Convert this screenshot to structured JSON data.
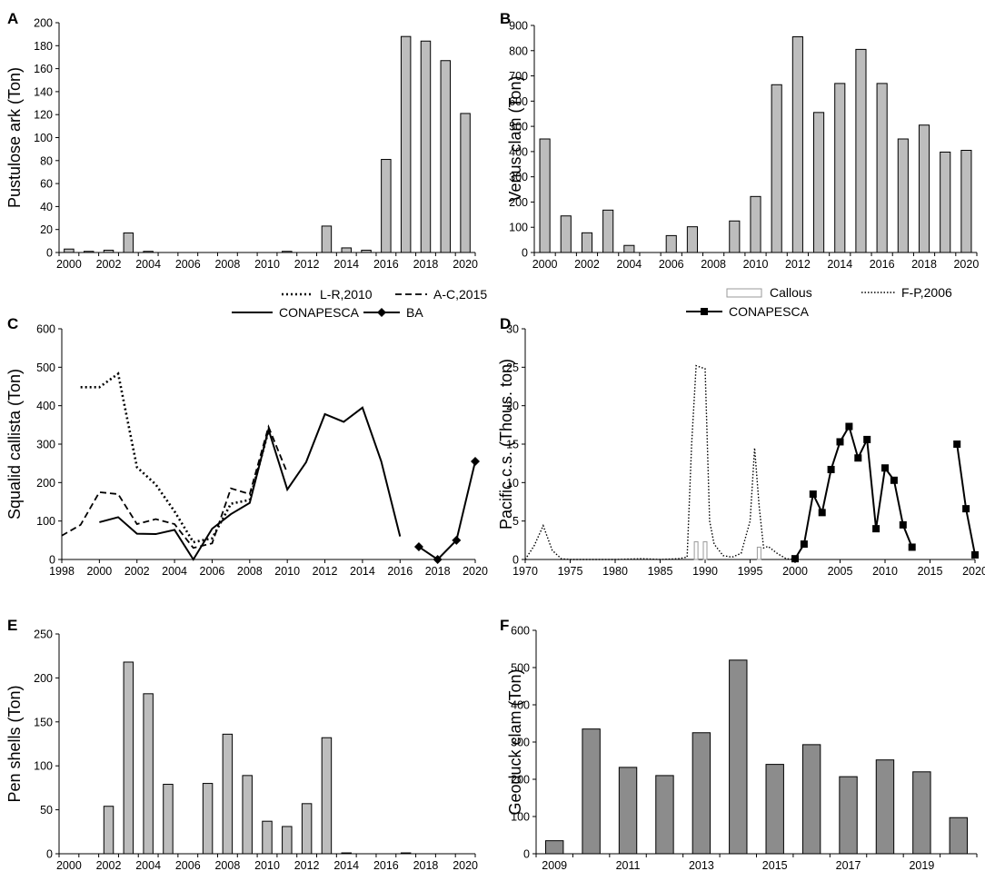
{
  "chart_data": [
    {
      "panel": "A",
      "type": "bar",
      "ylabel": "Pustulose ark (Ton)",
      "ylim": [
        0,
        200
      ],
      "yticks": [
        0,
        20,
        40,
        60,
        80,
        100,
        120,
        140,
        160,
        180,
        200
      ],
      "x": [
        2000,
        2001,
        2002,
        2003,
        2004,
        2005,
        2006,
        2007,
        2008,
        2009,
        2010,
        2011,
        2012,
        2013,
        2014,
        2015,
        2016,
        2017,
        2018,
        2019,
        2020
      ],
      "values": [
        3,
        1,
        2,
        17,
        1,
        0,
        0,
        0,
        0,
        0,
        0,
        1,
        0,
        23,
        4,
        2,
        81,
        188,
        184,
        167,
        121
      ],
      "xtick_labels": [
        "2000",
        "2002",
        "2004",
        "2006",
        "2008",
        "2010",
        "2012",
        "2014",
        "2016",
        "2018",
        "2020"
      ],
      "bar_color": "#bdbdbd"
    },
    {
      "panel": "B",
      "type": "bar",
      "ylabel": "Venus clam (Ton)",
      "ylim": [
        0,
        900
      ],
      "yticks": [
        0,
        100,
        200,
        300,
        400,
        500,
        600,
        700,
        800,
        900
      ],
      "x": [
        2000,
        2001,
        2002,
        2003,
        2004,
        2005,
        2006,
        2007,
        2008,
        2009,
        2010,
        2011,
        2012,
        2013,
        2014,
        2015,
        2016,
        2017,
        2018,
        2019,
        2020
      ],
      "values": [
        450,
        145,
        78,
        168,
        28,
        0,
        67,
        102,
        0,
        125,
        222,
        665,
        855,
        555,
        670,
        805,
        670,
        450,
        505,
        398,
        405
      ],
      "xtick_labels": [
        "2000",
        "2002",
        "2004",
        "2006",
        "2008",
        "2010",
        "2012",
        "2014",
        "2016",
        "2018",
        "2020"
      ],
      "bar_color": "#bdbdbd"
    },
    {
      "panel": "C",
      "type": "line",
      "ylabel": "Squalid callista (Ton)",
      "ylim": [
        0,
        600
      ],
      "xlim": [
        1998,
        2020
      ],
      "yticks": [
        0,
        100,
        200,
        300,
        400,
        500,
        600
      ],
      "xtick_labels": [
        "1998",
        "2000",
        "2002",
        "2004",
        "2006",
        "2008",
        "2010",
        "2012",
        "2014",
        "2016",
        "2018",
        "2020"
      ],
      "series": [
        {
          "name": "L-R,2010",
          "style": "dotted",
          "x": [
            1999,
            2000,
            2001,
            2002,
            2003,
            2004,
            2005,
            2006,
            2007,
            2008,
            2009
          ],
          "y": [
            448,
            448,
            483,
            240,
            195,
            125,
            45,
            55,
            145,
            155,
            335
          ]
        },
        {
          "name": "A-C,2015",
          "style": "dashed",
          "x": [
            1998,
            1999,
            2000,
            2001,
            2002,
            2003,
            2004,
            2005,
            2006,
            2007,
            2008,
            2009,
            2010
          ],
          "y": [
            62,
            90,
            175,
            170,
            92,
            105,
            92,
            30,
            42,
            185,
            170,
            345,
            225
          ]
        },
        {
          "name": "CONAPESCA",
          "style": "solid",
          "x": [
            2000,
            2001,
            2002,
            2003,
            2004,
            2005,
            2006,
            2007,
            2008,
            2009,
            2010,
            2011,
            2012,
            2013,
            2014,
            2015,
            2016
          ],
          "y": [
            97,
            110,
            67,
            66,
            77,
            0,
            80,
            118,
            147,
            338,
            182,
            253,
            378,
            358,
            395,
            255,
            60
          ]
        },
        {
          "name": "BA",
          "style": "diamond",
          "x": [
            2017,
            2018,
            2019,
            2020
          ],
          "y": [
            33,
            0,
            50,
            255
          ]
        }
      ]
    },
    {
      "panel": "D",
      "type": "line",
      "ylabel": "Pacific c.s. (Thous. ton)",
      "ylim": [
        0,
        30
      ],
      "xlim": [
        1970,
        2020
      ],
      "yticks": [
        0,
        5,
        10,
        15,
        20,
        25,
        30
      ],
      "xtick_labels": [
        "1970",
        "1975",
        "1980",
        "1985",
        "1990",
        "1995",
        "2000",
        "2005",
        "2010",
        "2015",
        "2020"
      ],
      "series": [
        {
          "name": "Callous",
          "style": "hollow-bar",
          "x": [
            1989,
            1990,
            1996
          ],
          "y": [
            2.3,
            2.3,
            1.6
          ]
        },
        {
          "name": "F-P,2006",
          "style": "dotted",
          "x": [
            1970,
            1971,
            1972,
            1973,
            1974,
            1975,
            1980,
            1983,
            1985,
            1987,
            1988,
            1988.5,
            1989,
            1990,
            1990.5,
            1991,
            1992,
            1993,
            1994,
            1995,
            1995.5,
            1996,
            1996.5,
            1997,
            1998,
            1999,
            2000
          ],
          "y": [
            0,
            1.8,
            4.4,
            1.2,
            0.1,
            0,
            0,
            0.1,
            0,
            0.1,
            0.3,
            15,
            25.2,
            24.8,
            5,
            2,
            0.5,
            0.3,
            0.8,
            5,
            14.5,
            7,
            1.5,
            1.7,
            0.8,
            0.1,
            0
          ]
        },
        {
          "name": "CONAPESCA",
          "style": "square",
          "x": [
            2000,
            2001,
            2002,
            2003,
            2004,
            2005,
            2006,
            2007,
            2008,
            2009,
            2010,
            2011,
            2012,
            2013
          ],
          "y": [
            0.1,
            2,
            8.5,
            6.1,
            11.7,
            15.3,
            17.3,
            13.2,
            15.6,
            4,
            11.9,
            10.3,
            4.5,
            1.6
          ]
        },
        {
          "name": "CONAPESCA",
          "style": "square",
          "x": [
            2018,
            2019,
            2020
          ],
          "y": [
            15,
            6.6,
            0.6
          ]
        }
      ]
    },
    {
      "panel": "E",
      "type": "bar",
      "ylabel": "Pen shells (Ton)",
      "ylim": [
        0,
        250
      ],
      "yticks": [
        0,
        50,
        100,
        150,
        200,
        250
      ],
      "x": [
        2000,
        2001,
        2002,
        2003,
        2004,
        2005,
        2006,
        2007,
        2008,
        2009,
        2010,
        2011,
        2012,
        2013,
        2014,
        2015,
        2016,
        2017,
        2018,
        2019,
        2020
      ],
      "values": [
        0,
        0,
        54,
        218,
        182,
        79,
        0,
        80,
        136,
        89,
        37,
        31,
        57,
        132,
        1,
        0,
        0,
        1,
        0,
        0,
        0
      ],
      "xtick_labels": [
        "2000",
        "2002",
        "2004",
        "2006",
        "2008",
        "2010",
        "2012",
        "2014",
        "2016",
        "2018",
        "2020"
      ],
      "bar_color": "#bdbdbd"
    },
    {
      "panel": "F",
      "type": "bar",
      "ylabel": "Geoduck clam (Ton)",
      "ylim": [
        0,
        600
      ],
      "yticks": [
        0,
        100,
        200,
        300,
        400,
        500,
        600
      ],
      "x": [
        2009,
        2010,
        2011,
        2012,
        2013,
        2014,
        2015,
        2016,
        2017,
        2018,
        2019,
        2020
      ],
      "values": [
        35,
        335,
        232,
        210,
        325,
        520,
        240,
        293,
        207,
        252,
        220,
        97
      ],
      "xtick_labels": [
        "2009",
        "2011",
        "2013",
        "2015",
        "2017",
        "2019"
      ],
      "bar_color": "#8c8c8c"
    }
  ]
}
